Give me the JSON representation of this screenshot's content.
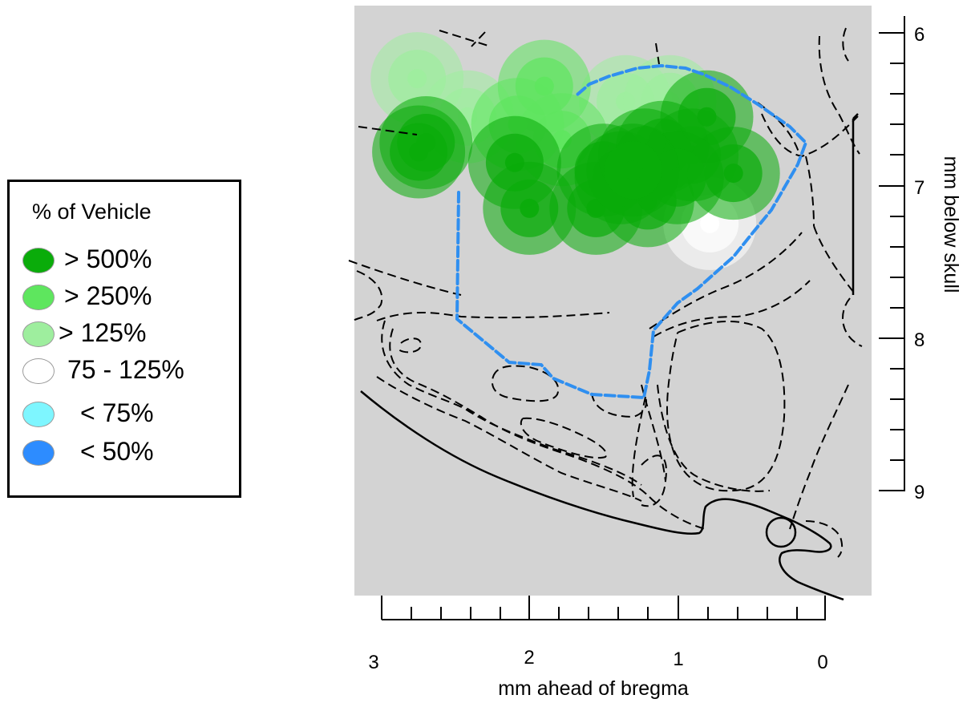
{
  "legend": {
    "title": "% of Vehicle",
    "items": [
      {
        "label": "> 500%",
        "color": "#0aac0a"
      },
      {
        "label": "> 250%",
        "color": "#5ee65e"
      },
      {
        "label": "> 125%",
        "color": "#9eee9e"
      },
      {
        "label": "75 - 125%",
        "color": "#ffffff"
      },
      {
        "label": "< 75%",
        "color": "#7ef6ff"
      },
      {
        "label": "< 50%",
        "color": "#2d8cff"
      }
    ]
  },
  "x_axis": {
    "title": "mm ahead of bregma",
    "tick_labels": [
      "3",
      "2",
      "1",
      "0"
    ]
  },
  "y_axis": {
    "title": "mm below skull",
    "tick_labels": [
      "6",
      "7",
      "8",
      "9"
    ]
  },
  "colors": {
    "panel_background": "#d3d3d3",
    "boundary": "#2f8ff0",
    "atlas_lines": "#000000"
  },
  "sites": [
    {
      "ap": 2.76,
      "dv": 6.3,
      "level": "> 125%"
    },
    {
      "ap": 2.42,
      "dv": 6.55,
      "level": "> 125%"
    },
    {
      "ap": 1.9,
      "dv": 6.35,
      "level": "> 250%"
    },
    {
      "ap": 1.35,
      "dv": 6.45,
      "level": "> 125%"
    },
    {
      "ap": 1.05,
      "dv": 6.45,
      "level": "> 125%"
    },
    {
      "ap": 0.78,
      "dv": 7.25,
      "level": "75 - 125%"
    },
    {
      "ap": 2.08,
      "dv": 6.6,
      "level": "> 250%"
    },
    {
      "ap": 1.78,
      "dv": 6.7,
      "level": "> 250%"
    },
    {
      "ap": 2.75,
      "dv": 6.78,
      "level": "> 500%"
    },
    {
      "ap": 2.7,
      "dv": 6.72,
      "level": "> 500%"
    },
    {
      "ap": 2.1,
      "dv": 6.85,
      "level": "> 500%"
    },
    {
      "ap": 2.0,
      "dv": 7.15,
      "level": "> 500%"
    },
    {
      "ap": 1.55,
      "dv": 7.15,
      "level": "> 500%"
    },
    {
      "ap": 1.2,
      "dv": 7.1,
      "level": "> 500%"
    },
    {
      "ap": 1.5,
      "dv": 6.9,
      "level": "> 500%"
    },
    {
      "ap": 1.38,
      "dv": 6.95,
      "level": "> 500%"
    },
    {
      "ap": 1.22,
      "dv": 6.8,
      "level": "> 500%"
    },
    {
      "ap": 1.1,
      "dv": 6.75,
      "level": "> 500%"
    },
    {
      "ap": 0.9,
      "dv": 6.8,
      "level": "> 500%"
    },
    {
      "ap": 0.8,
      "dv": 6.55,
      "level": "> 500%"
    },
    {
      "ap": 0.62,
      "dv": 6.92,
      "level": "> 500%"
    },
    {
      "ap": 1.0,
      "dv": 6.95,
      "level": "> 500%"
    },
    {
      "ap": 1.3,
      "dv": 6.9,
      "level": "> 500%"
    }
  ]
}
